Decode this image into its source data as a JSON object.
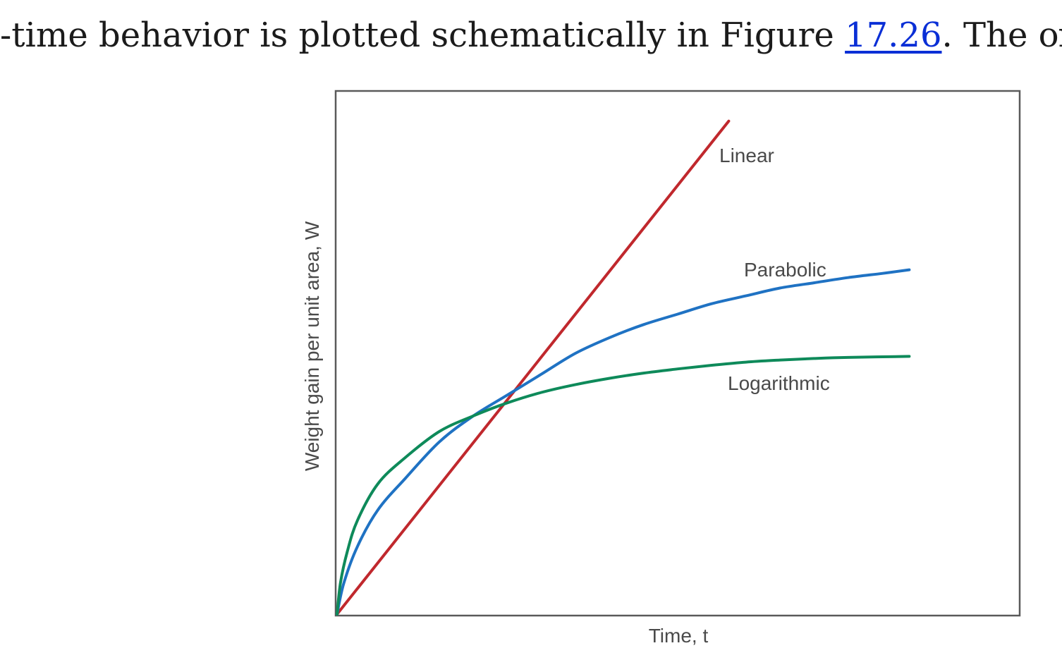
{
  "text": {
    "before": "-time behavior is plotted schematically in Figure ",
    "link": "17.26",
    "after": ". The oxida"
  },
  "chart_data": {
    "type": "line",
    "xlabel": "Time, t",
    "ylabel": "Weight gain per unit area, W",
    "xlim": [
      0,
      1
    ],
    "ylim": [
      0,
      1
    ],
    "grid": false,
    "legend": "none",
    "series": [
      {
        "name": "Linear",
        "color": "#c0282d",
        "x": [
          0,
          0.575
        ],
        "y": [
          0,
          0.945
        ]
      },
      {
        "name": "Parabolic",
        "color": "#1f72c3",
        "x": [
          0,
          0.01,
          0.03,
          0.06,
          0.1,
          0.15,
          0.2,
          0.25,
          0.3,
          0.35,
          0.4,
          0.45,
          0.5,
          0.55,
          0.6,
          0.65,
          0.7,
          0.75,
          0.8,
          0.84
        ],
        "y": [
          0,
          0.06,
          0.13,
          0.2,
          0.26,
          0.33,
          0.38,
          0.42,
          0.46,
          0.5,
          0.53,
          0.555,
          0.575,
          0.595,
          0.61,
          0.625,
          0.635,
          0.645,
          0.653,
          0.66
        ]
      },
      {
        "name": "Logarithmic",
        "color": "#0e8a5a",
        "x": [
          0,
          0.005,
          0.015,
          0.03,
          0.06,
          0.1,
          0.15,
          0.2,
          0.25,
          0.3,
          0.35,
          0.4,
          0.45,
          0.5,
          0.55,
          0.6,
          0.65,
          0.7,
          0.75,
          0.84
        ],
        "y": [
          0,
          0.06,
          0.12,
          0.18,
          0.25,
          0.3,
          0.35,
          0.38,
          0.405,
          0.425,
          0.44,
          0.452,
          0.462,
          0.47,
          0.477,
          0.483,
          0.487,
          0.49,
          0.492,
          0.494
        ]
      }
    ]
  }
}
